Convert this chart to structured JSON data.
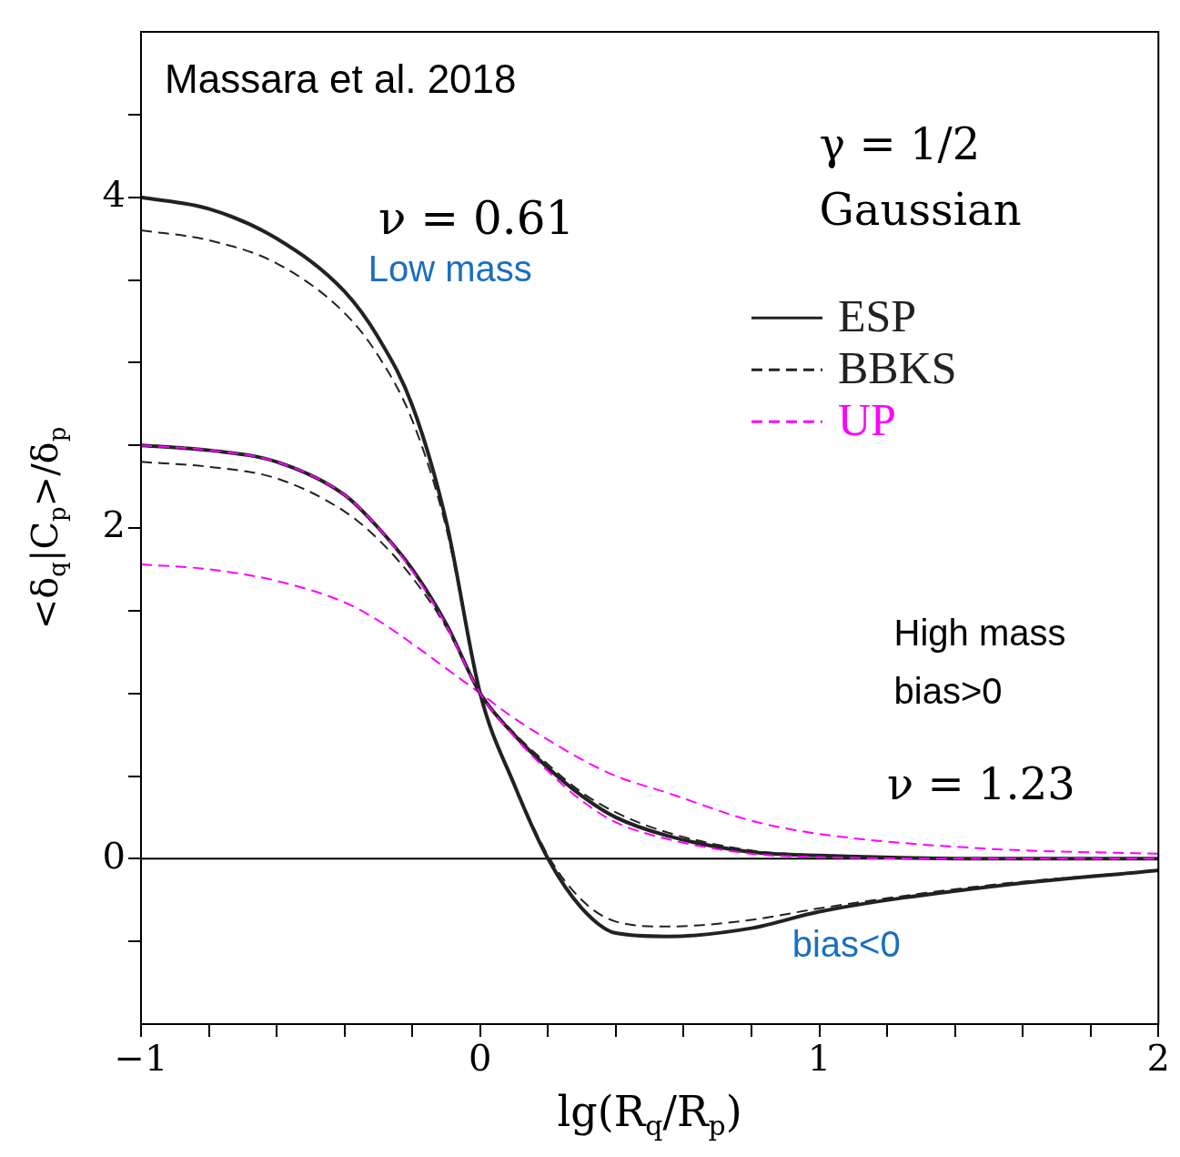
{
  "chart_data": {
    "type": "line",
    "xlabel": "lg(R$_{q}$/R$_{p}$)",
    "ylabel": "<δ$_{q}$|C$_{p}$>/δ$_{p}$",
    "xlim": [
      -1,
      2
    ],
    "ylim": [
      -1,
      5
    ],
    "xticks": [
      -1,
      {
        "value": -0.8,
        "label": null
      },
      {
        "value": -0.6,
        "label": null
      },
      {
        "value": -0.4,
        "label": null
      },
      {
        "value": -0.2,
        "label": null
      },
      0,
      {
        "value": 0.2,
        "label": null
      },
      {
        "value": 0.4,
        "label": null
      },
      {
        "value": 0.6,
        "label": null
      },
      {
        "value": 0.8,
        "label": null
      },
      1,
      {
        "value": 1.2,
        "label": null
      },
      {
        "value": 1.4,
        "label": null
      },
      {
        "value": 1.6,
        "label": null
      },
      {
        "value": 1.8,
        "label": null
      },
      2
    ],
    "yticks": [
      {
        "value": -0.5,
        "label": null
      },
      0,
      {
        "value": 0.5,
        "label": null
      },
      {
        "value": 1,
        "label": null
      },
      {
        "value": 1.5,
        "label": null
      },
      2,
      {
        "value": 2.5,
        "label": null
      },
      {
        "value": 3,
        "label": null
      },
      {
        "value": 3.5,
        "label": null
      },
      4,
      {
        "value": 4.5,
        "label": null
      }
    ],
    "x": [
      -1,
      -0.8,
      -0.6,
      -0.4,
      -0.3,
      -0.2,
      -0.1,
      0,
      0.1,
      0.2,
      0.3,
      0.4,
      0.55,
      0.8,
      1,
      1.5,
      2
    ],
    "grid": false,
    "legend": "top right",
    "marker": "none",
    "series": [
      {
        "name": "ESP",
        "color": "#222222",
        "line_style": "solid",
        "values": [
          4.0,
          3.93,
          3.75,
          3.43,
          3.15,
          2.74,
          2.04,
          1.0,
          0.45,
          0.0,
          -0.3,
          -0.45,
          -0.47,
          -0.42,
          -0.32,
          -0.17,
          -0.07
        ]
      },
      {
        "name": "BBKS",
        "color": "#222222",
        "line_style": "dashed",
        "values": [
          3.8,
          3.74,
          3.6,
          3.3,
          3.04,
          2.65,
          2.0,
          1.0,
          0.46,
          0.02,
          -0.25,
          -0.38,
          -0.41,
          -0.37,
          -0.3,
          -0.16,
          -0.07
        ]
      },
      {
        "name": "UP",
        "color": "#ff00ff",
        "line_style": "dashed",
        "values": [
          1.78,
          1.75,
          1.68,
          1.55,
          1.44,
          1.3,
          1.15,
          1.0,
          0.85,
          0.72,
          0.6,
          0.5,
          0.4,
          0.23,
          0.15,
          0.06,
          0.03
        ]
      },
      {
        "color": "#222222",
        "line_style": "solid",
        "values": [
          2.5,
          2.47,
          2.4,
          2.2,
          2.0,
          1.75,
          1.42,
          1.0,
          0.75,
          0.55,
          0.38,
          0.25,
          0.14,
          0.04,
          0.02,
          0.0,
          0.0
        ]
      },
      {
        "color": "#222222",
        "line_style": "dashed",
        "values": [
          2.4,
          2.37,
          2.3,
          2.1,
          1.93,
          1.7,
          1.4,
          1.0,
          0.76,
          0.57,
          0.4,
          0.28,
          0.16,
          0.05,
          0.02,
          0.0,
          0.0
        ]
      },
      {
        "color": "#ff00ff",
        "line_style": "dashed",
        "values": [
          2.5,
          2.47,
          2.4,
          2.2,
          2.0,
          1.74,
          1.41,
          1.0,
          0.74,
          0.53,
          0.35,
          0.22,
          0.12,
          0.03,
          0.01,
          0.0,
          0.0
        ]
      }
    ],
    "ref_lines": [
      {
        "axis": "y",
        "value": 0,
        "color": "#000000",
        "line_style": "solid"
      }
    ],
    "annotations": [
      "Massara et al. 2018",
      "ν = 0.61",
      "Low mass",
      "γ = 1/2",
      "Gaussian",
      "High mass",
      "bias>0",
      "ν = 1.23",
      "bias<0"
    ]
  }
}
